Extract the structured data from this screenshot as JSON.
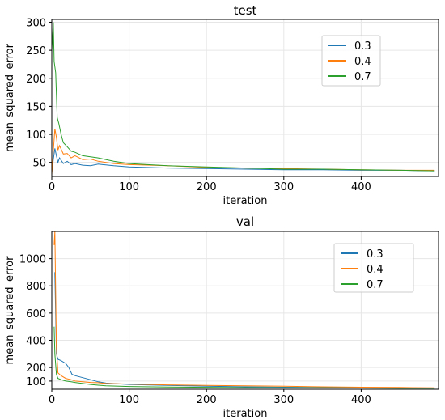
{
  "chart_data": [
    {
      "type": "line",
      "title": "test",
      "xlabel": "iteration",
      "ylabel": "mean_squared_error",
      "xlim": [
        0,
        500
      ],
      "ylim": [
        25,
        305
      ],
      "xticks": [
        0,
        100,
        200,
        300,
        400
      ],
      "yticks": [
        50,
        100,
        150,
        200,
        250,
        300
      ],
      "grid": true,
      "legend_position": "top-right",
      "series": [
        {
          "name": "0.3",
          "color": "#1f77b4",
          "points": [
            [
              0,
              32
            ],
            [
              2,
              55
            ],
            [
              4,
              75
            ],
            [
              6,
              62
            ],
            [
              8,
              50
            ],
            [
              10,
              58
            ],
            [
              15,
              48
            ],
            [
              20,
              52
            ],
            [
              25,
              46
            ],
            [
              30,
              48
            ],
            [
              40,
              45
            ],
            [
              50,
              44
            ],
            [
              60,
              47
            ],
            [
              80,
              44
            ],
            [
              100,
              42
            ],
            [
              150,
              40
            ],
            [
              200,
              39
            ],
            [
              250,
              38
            ],
            [
              300,
              37
            ],
            [
              350,
              37
            ],
            [
              400,
              36
            ],
            [
              450,
              36
            ],
            [
              495,
              35
            ]
          ]
        },
        {
          "name": "0.4",
          "color": "#ff7f0e",
          "points": [
            [
              0,
              28
            ],
            [
              2,
              70
            ],
            [
              4,
              110
            ],
            [
              6,
              95
            ],
            [
              8,
              72
            ],
            [
              10,
              80
            ],
            [
              15,
              65
            ],
            [
              20,
              66
            ],
            [
              25,
              58
            ],
            [
              30,
              62
            ],
            [
              40,
              55
            ],
            [
              50,
              56
            ],
            [
              60,
              52
            ],
            [
              80,
              48
            ],
            [
              100,
              46
            ],
            [
              150,
              44
            ],
            [
              200,
              41
            ],
            [
              250,
              40
            ],
            [
              300,
              39
            ],
            [
              350,
              38
            ],
            [
              400,
              37
            ],
            [
              450,
              36
            ],
            [
              495,
              36
            ]
          ]
        },
        {
          "name": "0.7",
          "color": "#2ca02c",
          "points": [
            [
              0,
              250
            ],
            [
              2,
              300
            ],
            [
              3,
              230
            ],
            [
              5,
              210
            ],
            [
              7,
              130
            ],
            [
              9,
              120
            ],
            [
              12,
              100
            ],
            [
              15,
              85
            ],
            [
              20,
              78
            ],
            [
              25,
              70
            ],
            [
              30,
              68
            ],
            [
              40,
              62
            ],
            [
              50,
              60
            ],
            [
              60,
              58
            ],
            [
              80,
              52
            ],
            [
              100,
              48
            ],
            [
              150,
              44
            ],
            [
              200,
              42
            ],
            [
              250,
              40
            ],
            [
              300,
              38
            ],
            [
              350,
              38
            ],
            [
              400,
              37
            ],
            [
              450,
              36
            ],
            [
              495,
              35
            ]
          ]
        }
      ]
    },
    {
      "type": "line",
      "title": "val",
      "xlabel": "iteration",
      "ylabel": "mean_squared_error",
      "xlim": [
        0,
        500
      ],
      "ylim": [
        40,
        1200
      ],
      "xticks": [
        0,
        100,
        200,
        300,
        400
      ],
      "yticks": [
        100,
        200,
        400,
        600,
        800,
        1000
      ],
      "grid": true,
      "legend_position": "top-right",
      "series": [
        {
          "name": "0.3",
          "color": "#1f77b4",
          "points": [
            [
              4,
              900
            ],
            [
              6,
              300
            ],
            [
              8,
              260
            ],
            [
              12,
              250
            ],
            [
              18,
              230
            ],
            [
              22,
              200
            ],
            [
              26,
              150
            ],
            [
              30,
              140
            ],
            [
              40,
              125
            ],
            [
              50,
              110
            ],
            [
              60,
              95
            ],
            [
              70,
              85
            ],
            [
              100,
              75
            ],
            [
              150,
              68
            ],
            [
              200,
              62
            ],
            [
              250,
              58
            ],
            [
              300,
              55
            ],
            [
              350,
              53
            ],
            [
              400,
              52
            ],
            [
              450,
              50
            ],
            [
              495,
              49
            ]
          ]
        },
        {
          "name": "0.4",
          "color": "#ff7f0e",
          "points": [
            [
              3,
              1100
            ],
            [
              4,
              1200
            ],
            [
              6,
              350
            ],
            [
              8,
              160
            ],
            [
              12,
              140
            ],
            [
              18,
              120
            ],
            [
              25,
              110
            ],
            [
              30,
              100
            ],
            [
              40,
              95
            ],
            [
              50,
              90
            ],
            [
              60,
              88
            ],
            [
              70,
              82
            ],
            [
              100,
              78
            ],
            [
              150,
              72
            ],
            [
              200,
              68
            ],
            [
              250,
              65
            ],
            [
              300,
              62
            ],
            [
              350,
              58
            ],
            [
              400,
              55
            ],
            [
              450,
              53
            ],
            [
              495,
              50
            ]
          ]
        },
        {
          "name": "0.7",
          "color": "#2ca02c",
          "points": [
            [
              3,
              500
            ],
            [
              4,
              300
            ],
            [
              6,
              150
            ],
            [
              8,
              120
            ],
            [
              12,
              110
            ],
            [
              18,
              100
            ],
            [
              25,
              95
            ],
            [
              30,
              90
            ],
            [
              40,
              82
            ],
            [
              50,
              75
            ],
            [
              60,
              70
            ],
            [
              70,
              65
            ],
            [
              100,
              60
            ],
            [
              150,
              56
            ],
            [
              200,
              54
            ],
            [
              250,
              52
            ],
            [
              300,
              50
            ],
            [
              350,
              50
            ],
            [
              400,
              49
            ],
            [
              450,
              48
            ],
            [
              495,
              47
            ]
          ]
        }
      ]
    }
  ]
}
